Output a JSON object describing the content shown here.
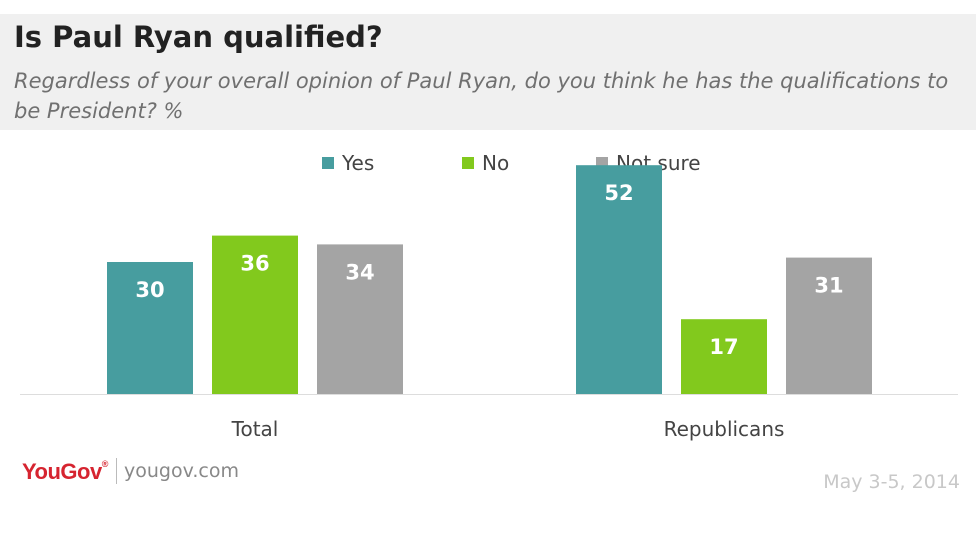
{
  "header": {
    "title": "Is Paul Ryan qualified?",
    "subtitle": "Regardless of your overall opinion of Paul Ryan, do you think he has the qualifications to be President? %"
  },
  "footer": {
    "brand": "YouGov",
    "url": "yougov.com",
    "date": "May 3-5, 2014"
  },
  "chart_data": {
    "type": "bar",
    "title": "Is Paul Ryan qualified?",
    "categories": [
      "Total",
      "Republicans"
    ],
    "series": [
      {
        "name": "Yes",
        "color": "#479d9f",
        "values": [
          30,
          52
        ]
      },
      {
        "name": "No",
        "color": "#82c91d",
        "values": [
          36,
          17
        ]
      },
      {
        "name": "Not sure",
        "color": "#a4a4a4",
        "values": [
          34,
          31
        ]
      }
    ],
    "ylim": [
      0,
      60
    ],
    "grid": false,
    "legend_position": "top-center",
    "data_labels": true
  }
}
